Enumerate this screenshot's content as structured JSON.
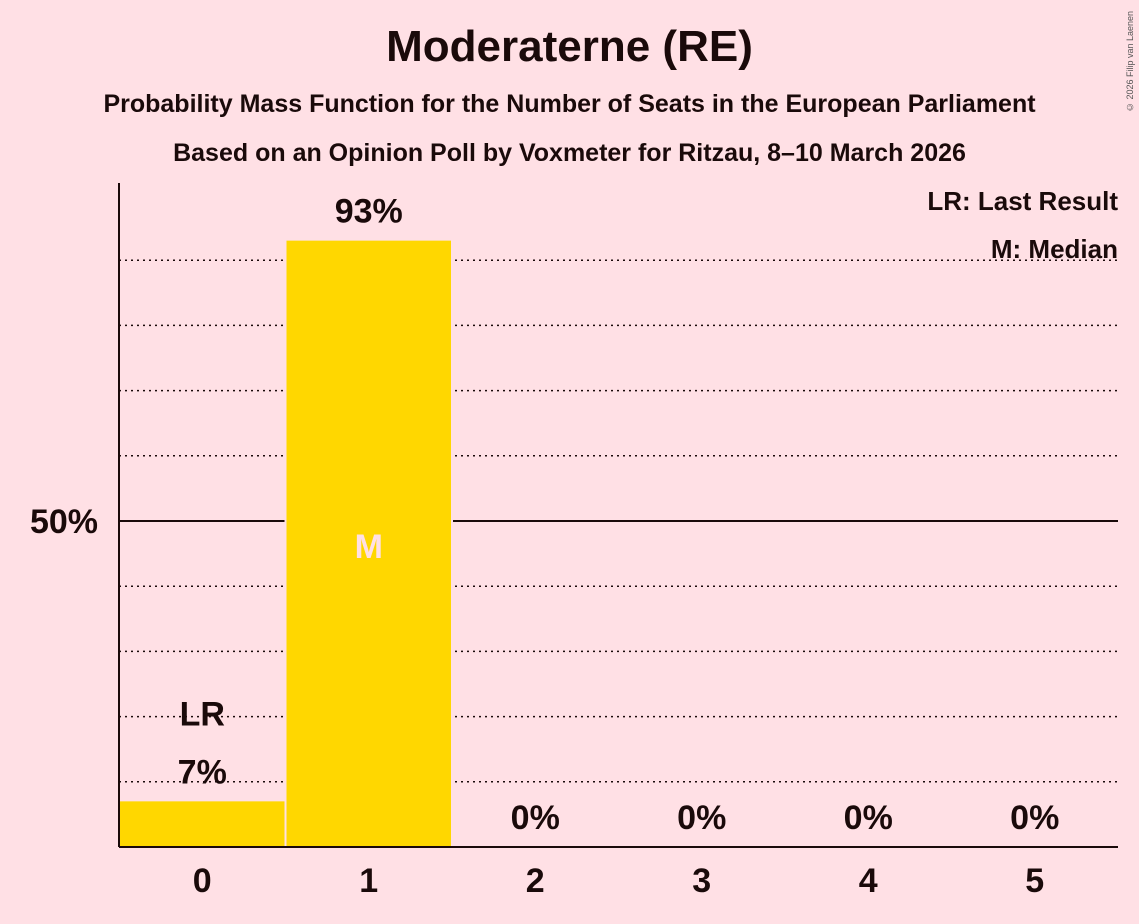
{
  "title": "Moderaterne (RE)",
  "subtitle1": "Probability Mass Function for the Number of Seats in the European Parliament",
  "subtitle2": "Based on an Opinion Poll by Voxmeter for Ritzau, 8–10 March 2026",
  "copyright": "© 2026 Filip van Laenen",
  "colors": {
    "bar": "#FFD700",
    "background": "#FFE0E5",
    "text": "#1a0a0a",
    "median_text": "#FFE0E5"
  },
  "chart_data": {
    "type": "bar",
    "categories": [
      "0",
      "1",
      "2",
      "3",
      "4",
      "5"
    ],
    "values": [
      7,
      93,
      0,
      0,
      0,
      0
    ],
    "value_labels": [
      "7%",
      "93%",
      "0%",
      "0%",
      "0%",
      "0%"
    ],
    "ylim": [
      0,
      100
    ],
    "major_tick": {
      "value": 50,
      "label": "50%"
    },
    "minor_gridlines": [
      10,
      20,
      30,
      40,
      60,
      70,
      80,
      90
    ],
    "last_result": {
      "index": 0,
      "label": "LR"
    },
    "median": {
      "index": 1,
      "label": "M"
    },
    "legend": [
      "LR: Last Result",
      "M: Median"
    ],
    "legend_position": "top-right"
  }
}
